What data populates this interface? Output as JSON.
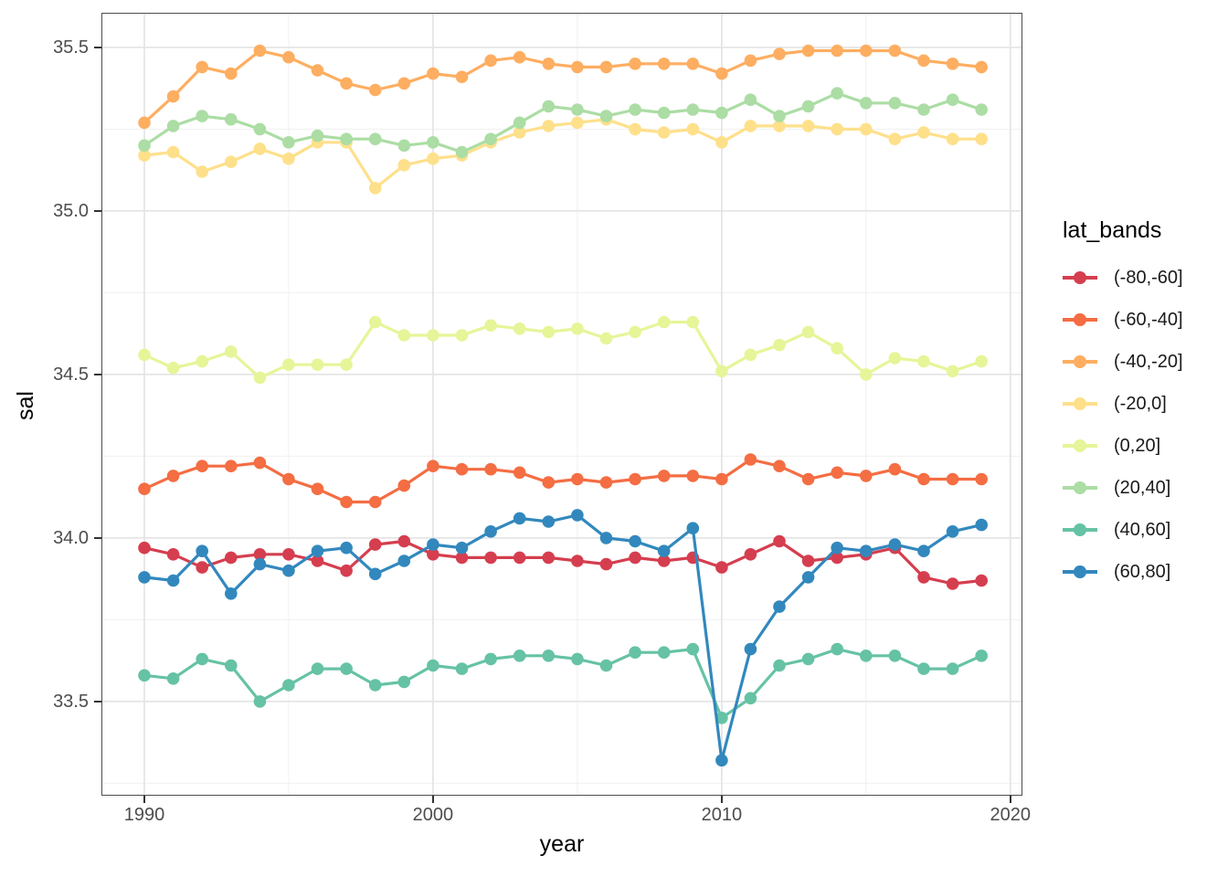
{
  "chart_data": {
    "type": "line",
    "title": "",
    "xlabel": "year",
    "ylabel": "sal",
    "legend_title": "lat_bands",
    "legend_position": "right",
    "grid": true,
    "x": [
      1990,
      1991,
      1992,
      1993,
      1994,
      1995,
      1996,
      1997,
      1998,
      1999,
      2000,
      2001,
      2002,
      2003,
      2004,
      2005,
      2006,
      2007,
      2008,
      2009,
      2010,
      2011,
      2012,
      2013,
      2014,
      2015,
      2016,
      2017,
      2018,
      2019
    ],
    "series": [
      {
        "name": "(-80,-60]",
        "color": "#d53e4f",
        "values": [
          33.97,
          33.95,
          33.91,
          33.94,
          33.95,
          33.95,
          33.93,
          33.9,
          33.98,
          33.99,
          33.95,
          33.94,
          33.94,
          33.94,
          33.94,
          33.93,
          33.92,
          33.94,
          33.93,
          33.94,
          33.91,
          33.95,
          33.99,
          33.93,
          33.94,
          33.95,
          33.97,
          33.88,
          33.86,
          33.87
        ]
      },
      {
        "name": "(-60,-40]",
        "color": "#f46d43",
        "values": [
          34.15,
          34.19,
          34.22,
          34.22,
          34.23,
          34.18,
          34.15,
          34.11,
          34.11,
          34.16,
          34.22,
          34.21,
          34.21,
          34.2,
          34.17,
          34.18,
          34.17,
          34.18,
          34.19,
          34.19,
          34.18,
          34.24,
          34.22,
          34.18,
          34.2,
          34.19,
          34.21,
          34.18,
          34.18,
          34.18
        ]
      },
      {
        "name": "(-40,-20]",
        "color": "#fdae61",
        "values": [
          35.27,
          35.35,
          35.44,
          35.42,
          35.49,
          35.47,
          35.43,
          35.39,
          35.37,
          35.39,
          35.42,
          35.41,
          35.46,
          35.47,
          35.45,
          35.44,
          35.44,
          35.45,
          35.45,
          35.45,
          35.42,
          35.46,
          35.48,
          35.49,
          35.49,
          35.49,
          35.49,
          35.46,
          35.45,
          35.44
        ]
      },
      {
        "name": "(-20,0]",
        "color": "#fee08b",
        "values": [
          35.17,
          35.18,
          35.12,
          35.15,
          35.19,
          35.16,
          35.21,
          35.21,
          35.07,
          35.14,
          35.16,
          35.17,
          35.21,
          35.24,
          35.26,
          35.27,
          35.28,
          35.25,
          35.24,
          35.25,
          35.21,
          35.26,
          35.26,
          35.26,
          35.25,
          35.25,
          35.22,
          35.24,
          35.22,
          35.22
        ]
      },
      {
        "name": "(0,20]",
        "color": "#e6f598",
        "values": [
          34.56,
          34.52,
          34.54,
          34.57,
          34.49,
          34.53,
          34.53,
          34.53,
          34.66,
          34.62,
          34.62,
          34.62,
          34.65,
          34.64,
          34.63,
          34.64,
          34.61,
          34.63,
          34.66,
          34.66,
          34.51,
          34.56,
          34.59,
          34.63,
          34.58,
          34.5,
          34.55,
          34.54,
          34.51,
          34.54
        ]
      },
      {
        "name": "(20,40]",
        "color": "#abdda4",
        "values": [
          35.2,
          35.26,
          35.29,
          35.28,
          35.25,
          35.21,
          35.23,
          35.22,
          35.22,
          35.2,
          35.21,
          35.18,
          35.22,
          35.27,
          35.32,
          35.31,
          35.29,
          35.31,
          35.3,
          35.31,
          35.3,
          35.34,
          35.29,
          35.32,
          35.36,
          35.33,
          35.33,
          35.31,
          35.34,
          35.31
        ]
      },
      {
        "name": "(40,60]",
        "color": "#66c2a5",
        "values": [
          33.58,
          33.57,
          33.63,
          33.61,
          33.5,
          33.55,
          33.6,
          33.6,
          33.55,
          33.56,
          33.61,
          33.6,
          33.63,
          33.64,
          33.64,
          33.63,
          33.61,
          33.65,
          33.65,
          33.66,
          33.45,
          33.51,
          33.61,
          33.63,
          33.66,
          33.64,
          33.64,
          33.6,
          33.6,
          33.64
        ]
      },
      {
        "name": "(60,80]",
        "color": "#3288bd",
        "values": [
          33.88,
          33.87,
          33.96,
          33.83,
          33.92,
          33.9,
          33.96,
          33.97,
          33.89,
          33.93,
          33.98,
          33.97,
          34.02,
          34.06,
          34.05,
          34.07,
          34.0,
          33.99,
          33.96,
          34.03,
          33.32,
          33.66,
          33.79,
          33.88,
          33.97,
          33.96,
          33.98,
          33.96,
          34.02,
          34.04
        ]
      }
    ],
    "x_ticks": [
      1990,
      2000,
      2010,
      2020
    ],
    "x_tick_labels": [
      "1990",
      "2000",
      "2010",
      "2020"
    ],
    "x_minor_ticks": [
      1995,
      2005,
      2015
    ],
    "y_ticks": [
      33.5,
      34.0,
      34.5,
      35.0,
      35.5
    ],
    "y_tick_labels": [
      "33.5",
      "34.0",
      "34.5",
      "35.0",
      "35.5"
    ],
    "y_minor_ticks": [
      33.25,
      33.75,
      34.25,
      34.75,
      35.25
    ],
    "xlim": [
      1988.513,
      2020.418
    ],
    "ylim": [
      33.212,
      35.606
    ]
  },
  "theme": {
    "grid_major_color": "#e5e5e5",
    "grid_minor_color": "#f0f0f0",
    "panel_border_color": "#4d4d4d",
    "tick_mark_color": "#333333",
    "tick_label_color": "#4d4d4d"
  }
}
